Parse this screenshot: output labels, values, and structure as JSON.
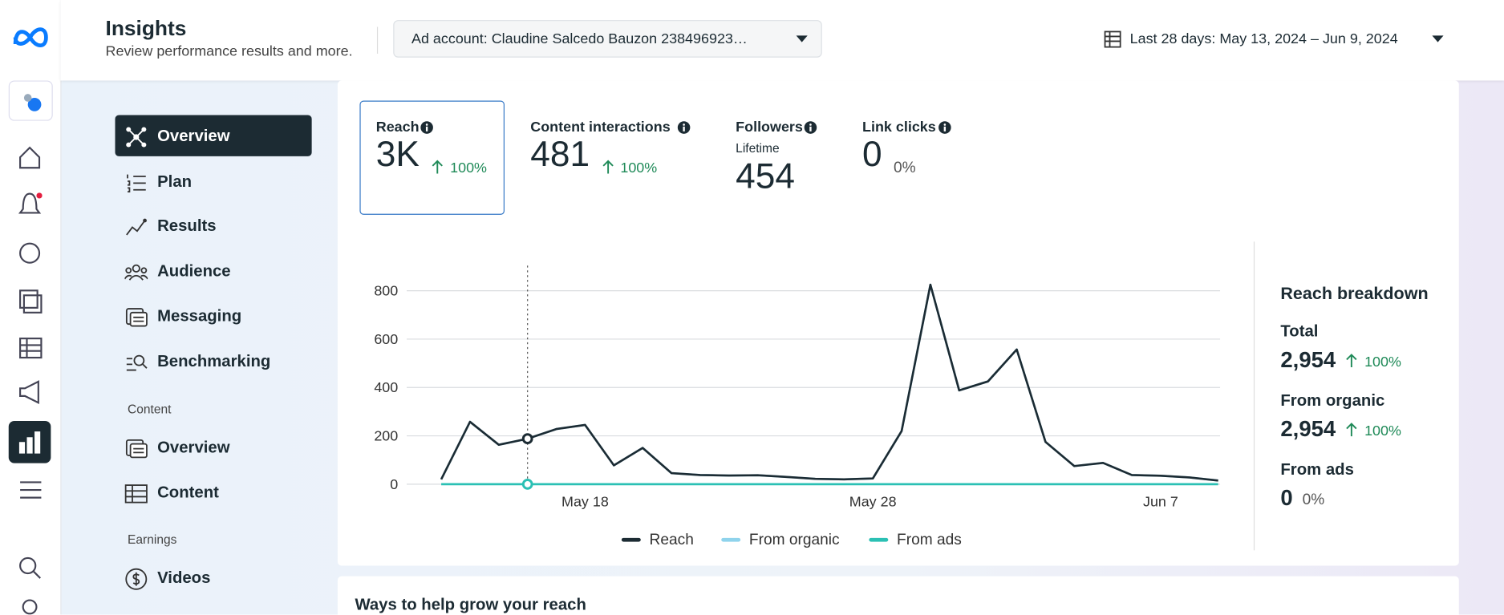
{
  "header": {
    "title": "Insights",
    "subtitle": "Review performance results and more.",
    "ad_account": "Ad account: Claudine Salcedo Bauzon 238496923…",
    "date_range": "Last 28 days: May 13, 2024 – Jun 9, 2024"
  },
  "nav": {
    "items": [
      "Overview",
      "Plan",
      "Results",
      "Audience",
      "Messaging",
      "Benchmarking"
    ],
    "content_heading": "Content",
    "content_items": [
      "Overview",
      "Content"
    ],
    "earnings_heading": "Earnings",
    "earnings_items": [
      "Videos"
    ]
  },
  "metrics": [
    {
      "label": "Reach",
      "value": "3K",
      "change": "100%"
    },
    {
      "label": "Content interactions",
      "value": "481",
      "change": "100%"
    },
    {
      "label": "Followers",
      "sublabel": "Lifetime",
      "value": "454"
    },
    {
      "label": "Link clicks",
      "value": "0",
      "change": "0%"
    }
  ],
  "chart_data": {
    "type": "line",
    "categories": [
      null,
      null,
      null,
      null,
      null,
      "May 18",
      null,
      null,
      null,
      null,
      null,
      null,
      null,
      null,
      null,
      "May 28",
      null,
      null,
      null,
      null,
      null,
      null,
      null,
      null,
      null,
      "Jun 7",
      null,
      null
    ],
    "series": [
      {
        "name": "Reach",
        "color": "#1c2b33",
        "values": [
          20,
          258,
          163,
          188,
          228,
          245,
          78,
          150,
          46,
          38,
          36,
          37,
          30,
          22,
          20,
          24,
          220,
          825,
          388,
          425,
          557,
          175,
          75,
          88,
          38,
          35,
          28,
          15
        ]
      },
      {
        "name": "From organic",
        "color": "#8fd3ec",
        "values": [
          20,
          258,
          163,
          188,
          228,
          245,
          78,
          150,
          46,
          38,
          36,
          37,
          30,
          22,
          20,
          24,
          220,
          825,
          388,
          425,
          557,
          175,
          75,
          88,
          38,
          35,
          28,
          15
        ]
      },
      {
        "name": "From ads",
        "color": "#2bc0b4",
        "values": [
          0,
          0,
          0,
          0,
          0,
          0,
          0,
          0,
          0,
          0,
          0,
          0,
          0,
          0,
          0,
          0,
          0,
          0,
          0,
          0,
          0,
          0,
          0,
          0,
          0,
          0,
          0,
          0
        ]
      }
    ],
    "ylim": [
      0,
      900
    ],
    "yticks": [
      0,
      200,
      400,
      600,
      800
    ],
    "grid": true
  },
  "breakdown": {
    "title": "Reach breakdown",
    "rows": [
      {
        "label": "Total",
        "value": "2,954",
        "change": "100%"
      },
      {
        "label": "From organic",
        "value": "2,954",
        "change": "100%"
      },
      {
        "label": "From ads",
        "value": "0",
        "change": "0%"
      }
    ]
  },
  "footer_card": {
    "title": "Ways to help grow your reach"
  }
}
